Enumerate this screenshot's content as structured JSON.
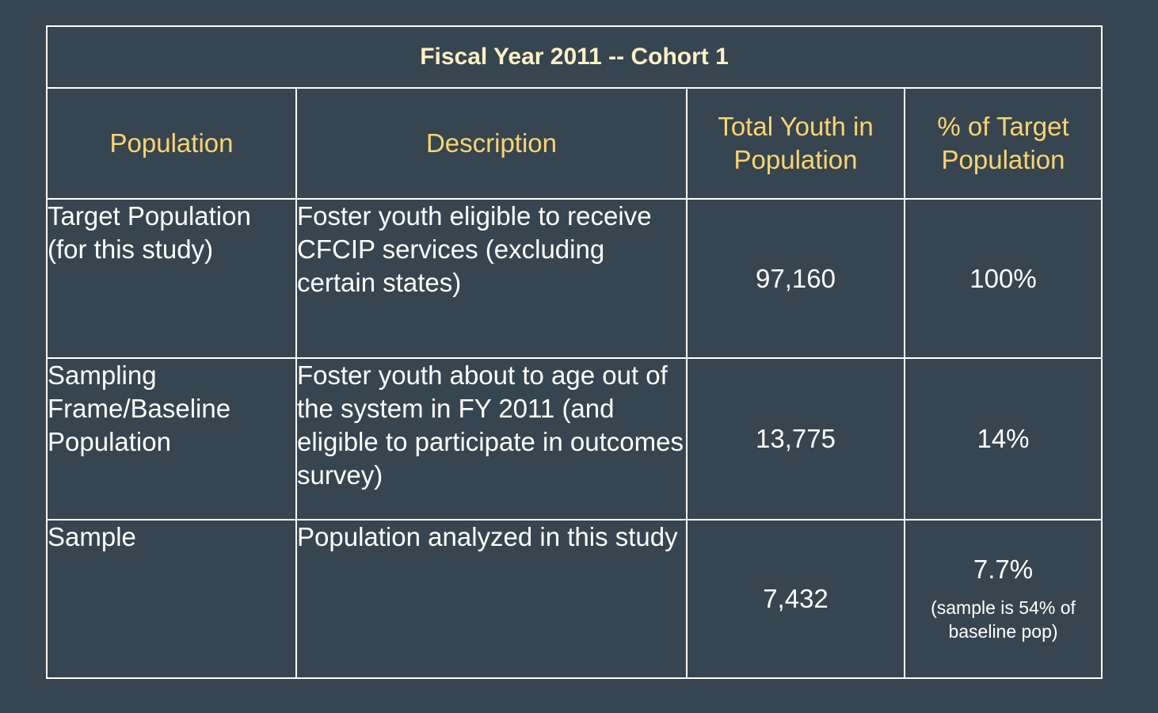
{
  "table": {
    "title": "Fiscal Year 2011 -- Cohort 1",
    "headers": [
      "Population",
      "Description",
      "Total Youth in Population",
      "% of Target Population"
    ],
    "rows": [
      {
        "population": "Target Population (for this study)",
        "description": "Foster youth eligible to receive CFCIP services (excluding certain states)",
        "total": "97,160",
        "percent": "100%",
        "note": ""
      },
      {
        "population": "Sampling Frame/Baseline Population",
        "description": "Foster youth about to age out of the system in FY 2011 (and eligible to participate in outcomes survey)",
        "total": "13,775",
        "percent": "14%",
        "note": ""
      },
      {
        "population": "Sample",
        "description": "Population analyzed in this study",
        "total": "7,432",
        "percent": "7.7%",
        "note": "(sample is 54% of baseline pop)"
      }
    ],
    "colors": {
      "background": "#36454f",
      "title_text": "#fdf1c6",
      "header_text": "#fbd473",
      "body_text": "#ffffff",
      "border": "#ffffff"
    }
  }
}
